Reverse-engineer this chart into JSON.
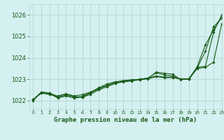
{
  "title": "Graphe pression niveau de la mer (hPa)",
  "background_color": "#d4f0f0",
  "grid_color": "#b8d8d8",
  "line_color": "#1a5c1a",
  "marker_color": "#1a5c1a",
  "xlim": [
    -0.5,
    23
  ],
  "ylim": [
    1021.6,
    1026.5
  ],
  "yticks": [
    1022,
    1023,
    1024,
    1025,
    1026
  ],
  "xtick_labels": [
    "0",
    "1",
    "2",
    "3",
    "4",
    "5",
    "6",
    "7",
    "8",
    "9",
    "10",
    "11",
    "12",
    "13",
    "14",
    "15",
    "16",
    "17",
    "18",
    "19",
    "20",
    "21",
    "22",
    "23"
  ],
  "series": [
    [
      1022.0,
      1022.4,
      1022.35,
      1022.2,
      1022.3,
      1022.2,
      1022.15,
      1022.3,
      1022.5,
      1022.65,
      1022.8,
      1022.9,
      1022.95,
      1023.0,
      1023.05,
      1023.3,
      1023.2,
      1023.15,
      1023.0,
      1023.0,
      1023.55,
      1023.6,
      1025.2,
      1026.0
    ],
    [
      1022.05,
      1022.4,
      1022.35,
      1022.15,
      1022.25,
      1022.15,
      1022.2,
      1022.38,
      1022.55,
      1022.7,
      1022.85,
      1022.9,
      1022.95,
      1023.0,
      1023.05,
      1023.15,
      1023.1,
      1023.1,
      1023.0,
      1023.0,
      1023.5,
      1023.55,
      1023.8,
      1025.6
    ],
    [
      1022.05,
      1022.38,
      1022.32,
      1022.12,
      1022.22,
      1022.12,
      1022.17,
      1022.36,
      1022.56,
      1022.72,
      1022.82,
      1022.87,
      1022.92,
      1022.97,
      1023.02,
      1023.12,
      1023.07,
      1023.07,
      1023.02,
      1023.02,
      1023.52,
      1024.3,
      1025.45,
      1025.85
    ],
    [
      1022.05,
      1022.35,
      1022.28,
      1022.22,
      1022.32,
      1022.22,
      1022.28,
      1022.4,
      1022.6,
      1022.78,
      1022.88,
      1022.93,
      1022.98,
      1022.98,
      1023.03,
      1023.33,
      1023.28,
      1023.23,
      1022.98,
      1023.03,
      1023.58,
      1024.6,
      1025.3,
      1025.9
    ]
  ]
}
